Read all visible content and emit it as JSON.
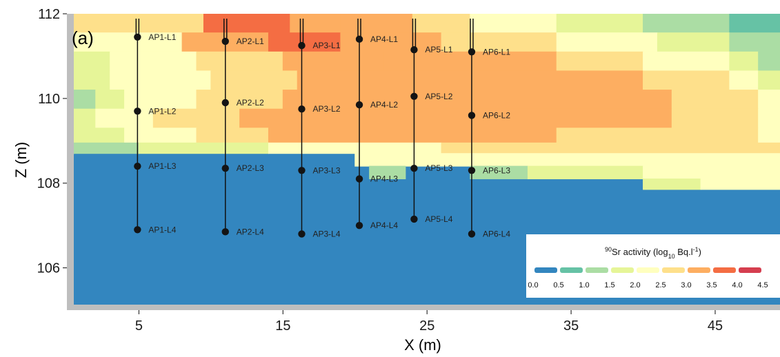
{
  "chart_data": {
    "type": "heatmap",
    "panel_label": "(a)",
    "xlabel": "X (m)",
    "ylabel": "Z (m)",
    "xlim": [
      0,
      49.5
    ],
    "ylim": [
      105,
      112
    ],
    "x_ticks": [
      5,
      15,
      25,
      35,
      45
    ],
    "y_ticks": [
      106,
      108,
      110,
      112
    ],
    "legend": {
      "title_pre": "90",
      "title_main": "Sr activity (log",
      "title_sub": "10",
      "title_post": " Bq.l",
      "title_sup": "-1",
      "title_end": ")",
      "placement": "bottom-right",
      "tick_labels": [
        "0.0",
        "0.5",
        "1.0",
        "1.5",
        "2.0",
        "2.5",
        "3.0",
        "3.5",
        "4.0",
        "4.5"
      ],
      "colors": [
        "#3386bf",
        "#66c2a5",
        "#abdda4",
        "#e6f598",
        "#ffffbf",
        "#fee08b",
        "#fdae61",
        "#f46d43",
        "#d53e4f"
      ]
    },
    "water_table_z": 108.7,
    "wells": [
      {
        "name": "AP1",
        "x": 4.9,
        "points": [
          {
            "label": "AP1-L1",
            "z": 111.45
          },
          {
            "label": "AP1-L2",
            "z": 109.7
          },
          {
            "label": "AP1-L3",
            "z": 108.4
          },
          {
            "label": "AP1-L4",
            "z": 106.9
          }
        ]
      },
      {
        "name": "AP2",
        "x": 11.0,
        "points": [
          {
            "label": "AP2-L1",
            "z": 111.35
          },
          {
            "label": "AP2-L2",
            "z": 109.9
          },
          {
            "label": "AP2-L3",
            "z": 108.35
          },
          {
            "label": "AP2-L4",
            "z": 106.85
          }
        ]
      },
      {
        "name": "AP3",
        "x": 16.3,
        "points": [
          {
            "label": "AP3-L1",
            "z": 111.25
          },
          {
            "label": "AP3-L2",
            "z": 109.75
          },
          {
            "label": "AP3-L3",
            "z": 108.3
          },
          {
            "label": "AP3-L4",
            "z": 106.8
          }
        ]
      },
      {
        "name": "AP4",
        "x": 20.3,
        "points": [
          {
            "label": "AP4-L1",
            "z": 111.4
          },
          {
            "label": "AP4-L2",
            "z": 109.85
          },
          {
            "label": "AP4-L3",
            "z": 108.1
          },
          {
            "label": "AP4-L4",
            "z": 107.0
          }
        ]
      },
      {
        "name": "AP5",
        "x": 24.1,
        "points": [
          {
            "label": "AP5-L1",
            "z": 111.15
          },
          {
            "label": "AP5-L2",
            "z": 110.05
          },
          {
            "label": "AP5-L3",
            "z": 108.35
          },
          {
            "label": "AP5-L4",
            "z": 107.15
          }
        ]
      },
      {
        "name": "AP6",
        "x": 28.1,
        "points": [
          {
            "label": "AP6-L1",
            "z": 111.1
          },
          {
            "label": "AP6-L2",
            "z": 109.6
          },
          {
            "label": "AP6-L3",
            "z": 108.3
          },
          {
            "label": "AP6-L4",
            "z": 106.8
          }
        ]
      }
    ],
    "vadose_zone_log10_activity": [
      {
        "z": [
          111.55,
          112.0
        ],
        "bins": [
          [
            0,
            0.5,
            1.75
          ],
          [
            0.5,
            9.5,
            2.5
          ],
          [
            9.5,
            15.5,
            3.75
          ],
          [
            15.5,
            19,
            3.25
          ],
          [
            19,
            24,
            3.25
          ],
          [
            24,
            28,
            2.75
          ],
          [
            28,
            34,
            2.25
          ],
          [
            34,
            40,
            1.75
          ],
          [
            40,
            46,
            1.25
          ],
          [
            46,
            49.5,
            0.75
          ]
        ]
      },
      {
        "z": [
          111.1,
          111.55
        ],
        "bins": [
          [
            0,
            0.5,
            1.75
          ],
          [
            0.5,
            2,
            2.25
          ],
          [
            2,
            8,
            2.25
          ],
          [
            8,
            14,
            3.25
          ],
          [
            14,
            19,
            3.75
          ],
          [
            19,
            26,
            3.25
          ],
          [
            26,
            34,
            2.75
          ],
          [
            34,
            41,
            2.25
          ],
          [
            41,
            46,
            1.75
          ],
          [
            46,
            49.5,
            1.25
          ]
        ]
      },
      {
        "z": [
          110.65,
          111.1
        ],
        "bins": [
          [
            0,
            0.5,
            1.75
          ],
          [
            0.5,
            3,
            1.75
          ],
          [
            3,
            9,
            2.25
          ],
          [
            9,
            15,
            2.75
          ],
          [
            15,
            22,
            3.25
          ],
          [
            22,
            34,
            3.25
          ],
          [
            34,
            40,
            2.75
          ],
          [
            40,
            46,
            2.25
          ],
          [
            46,
            48,
            1.75
          ],
          [
            48,
            49.5,
            1.25
          ]
        ]
      },
      {
        "z": [
          110.2,
          110.65
        ],
        "bins": [
          [
            0,
            0.5,
            1.75
          ],
          [
            0.5,
            3,
            1.75
          ],
          [
            3,
            10,
            2.25
          ],
          [
            10,
            16,
            2.75
          ],
          [
            16,
            40,
            3.25
          ],
          [
            40,
            46,
            2.75
          ],
          [
            46,
            48,
            2.25
          ],
          [
            48,
            49.5,
            1.75
          ]
        ]
      },
      {
        "z": [
          109.75,
          110.2
        ],
        "bins": [
          [
            0,
            0.5,
            1.75
          ],
          [
            0.5,
            2,
            1.25
          ],
          [
            2,
            4,
            1.75
          ],
          [
            4,
            9,
            2.25
          ],
          [
            9,
            15,
            2.75
          ],
          [
            15,
            42,
            3.25
          ],
          [
            42,
            48,
            2.75
          ],
          [
            48,
            49.5,
            2.25
          ]
        ]
      },
      {
        "z": [
          109.3,
          109.75
        ],
        "bins": [
          [
            0,
            0.5,
            1.75
          ],
          [
            0.5,
            2,
            1.75
          ],
          [
            2,
            6,
            2.25
          ],
          [
            6,
            12,
            2.75
          ],
          [
            12,
            42,
            3.25
          ],
          [
            42,
            48,
            2.75
          ],
          [
            48,
            49.5,
            2.25
          ]
        ]
      },
      {
        "z": [
          108.95,
          109.3
        ],
        "bins": [
          [
            0,
            0.5,
            1.75
          ],
          [
            0.5,
            4,
            1.75
          ],
          [
            4,
            9,
            2.25
          ],
          [
            9,
            14,
            2.75
          ],
          [
            14,
            34,
            3.25
          ],
          [
            34,
            48,
            2.75
          ],
          [
            48,
            49.5,
            2.25
          ]
        ]
      },
      {
        "z": [
          108.7,
          108.95
        ],
        "bins": [
          [
            0,
            0.5,
            1.75
          ],
          [
            0.5,
            5,
            1.25
          ],
          [
            5,
            14,
            1.75
          ],
          [
            14,
            26,
            2.25
          ],
          [
            26,
            40,
            2.75
          ],
          [
            40,
            49.5,
            2.75
          ]
        ]
      }
    ],
    "saturated_zone_log10_activity": [
      {
        "z": [
          108.4,
          108.7
        ],
        "bins": [
          [
            20,
            49.5,
            2.25
          ]
        ]
      },
      {
        "z": [
          108.1,
          108.4
        ],
        "bins": [
          [
            21,
            23.5,
            1.25
          ],
          [
            28,
            32,
            1.25
          ],
          [
            32,
            40,
            1.75
          ],
          [
            40,
            49.5,
            2.25
          ]
        ]
      },
      {
        "z": [
          107.85,
          108.1
        ],
        "bins": [
          [
            40,
            44,
            1.75
          ],
          [
            44,
            49.5,
            2.25
          ]
        ]
      }
    ]
  }
}
